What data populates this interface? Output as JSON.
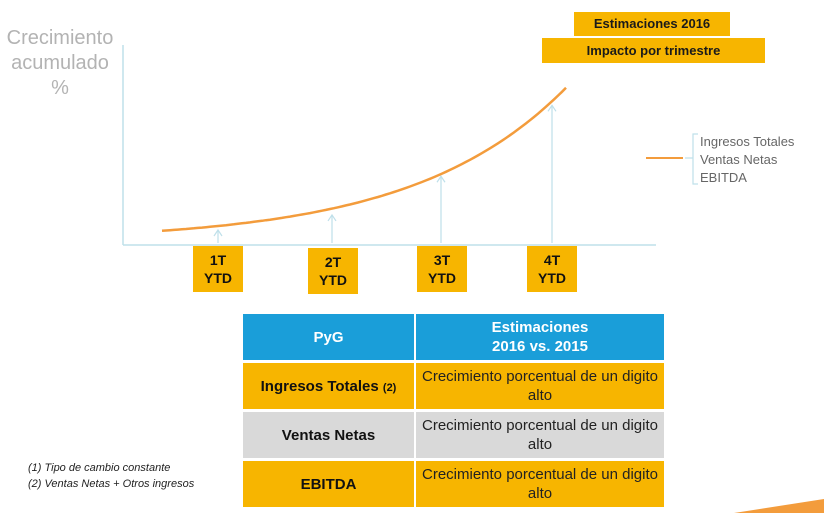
{
  "chart_data": {
    "type": "line",
    "ylabel": [
      "Crecimiento",
      "acumulado",
      "%"
    ],
    "categories": [
      {
        "q": "1T",
        "ytd": "YTD"
      },
      {
        "q": "2T",
        "ytd": "YTD"
      },
      {
        "q": "3T",
        "ytd": "YTD"
      },
      {
        "q": "4T",
        "ytd": "YTD"
      }
    ],
    "values": [
      1,
      1.7,
      3.5,
      6.8
    ],
    "line_color": "#f39c3c",
    "legend": [
      "Ingresos Totales",
      "Ventas Netas",
      "EBITDA"
    ],
    "legend_position": "right"
  },
  "header": {
    "title": "Estimaciones 2016",
    "subtitle": "Impacto por trimestre"
  },
  "table": {
    "head": [
      "PyG",
      "Estimaciones",
      "2016 vs. 2015"
    ],
    "rows": [
      {
        "label": "Ingresos Totales",
        "note": "(2)",
        "value": "Crecimiento porcentual de un digito alto"
      },
      {
        "label": "Ventas Netas",
        "note": "",
        "value": "Crecimiento porcentual de un digito alto"
      },
      {
        "label": "EBITDA",
        "note": "",
        "value": "Crecimiento porcentual de un digito alto"
      }
    ]
  },
  "footnotes": [
    "(1)  Tipo de cambio constante",
    "(2)  Ventas Netas + Otros ingresos"
  ],
  "colors": {
    "accent": "#f7b500",
    "blue": "#1a9ed9",
    "axis": "#bfe0ea"
  }
}
